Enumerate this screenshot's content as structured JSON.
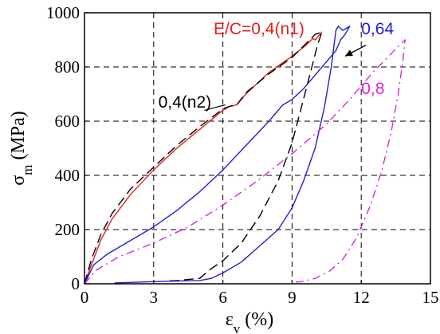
{
  "chart_data": {
    "type": "line",
    "xlabel": "ε_v (%)",
    "ylabel": "σ_m (MPa)",
    "xlim": [
      0,
      15
    ],
    "ylim": [
      0,
      1000
    ],
    "x_ticks": [
      0,
      3,
      6,
      9,
      12,
      15
    ],
    "y_ticks": [
      0,
      200,
      400,
      600,
      800,
      1000
    ],
    "grid": true,
    "grid_style": "dashed",
    "colors": {
      "n1": "#e8201b",
      "n2": "#000000",
      "c064": "#1f1fd8",
      "c08": "#e020e0"
    },
    "series": [
      {
        "name": "E/C=0,4(n1)",
        "color": "#e8201b",
        "style": "solid",
        "x": [
          0,
          0.3,
          0.7,
          1.2,
          2,
          3,
          4,
          5,
          6,
          6.3,
          6.6,
          7,
          8,
          9,
          9.6,
          9.9,
          10,
          10.3
        ],
        "y": [
          0,
          70,
          160,
          240,
          330,
          420,
          500,
          570,
          640,
          655,
          660,
          700,
          780,
          840,
          880,
          905,
          900,
          930
        ]
      },
      {
        "name": "0,4(n2)",
        "color": "#000000",
        "style": "dashed",
        "x": [
          0,
          0.3,
          0.7,
          1.2,
          2,
          3,
          4,
          5,
          6,
          6.3,
          6.6,
          7,
          8,
          9,
          10,
          10.3,
          10.1,
          9.8,
          9.4,
          9,
          8.4,
          7.6,
          6.8,
          6,
          5.4,
          5,
          4,
          3.5
        ],
        "y": [
          0,
          90,
          180,
          260,
          350,
          430,
          510,
          580,
          645,
          655,
          660,
          705,
          775,
          835,
          920,
          930,
          880,
          780,
          650,
          520,
          380,
          250,
          150,
          85,
          50,
          20,
          12,
          10
        ]
      },
      {
        "name": "0,64",
        "color": "#1f1fd8",
        "style": "solid",
        "x": [
          0,
          0.4,
          1,
          2,
          3,
          4,
          5,
          6,
          7,
          8,
          8.6,
          9,
          9.5,
          10,
          10.5,
          10.9,
          11.1,
          11.3,
          11.5,
          11.2,
          11,
          10.9,
          10.7,
          10.4,
          10.0,
          9.5,
          9.0,
          8.4,
          7.6,
          6.8,
          6,
          5.5,
          5,
          4,
          3,
          2,
          1.3
        ],
        "y": [
          0,
          70,
          110,
          160,
          210,
          270,
          340,
          420,
          510,
          600,
          660,
          680,
          720,
          770,
          820,
          860,
          900,
          920,
          950,
          935,
          950,
          935,
          800,
          650,
          500,
          380,
          280,
          200,
          140,
          80,
          40,
          20,
          12,
          10,
          8,
          5,
          3
        ]
      },
      {
        "name": "0,8",
        "color": "#e020e0",
        "style": "dashdot",
        "x": [
          0,
          0.5,
          1.5,
          3,
          4.5,
          6,
          7.5,
          9,
          10.5,
          11.5,
          12.5,
          13.2,
          13.7,
          13.9,
          13.8,
          13.6,
          13.3,
          12.9,
          12.4,
          11.8,
          11.2,
          10.6,
          10,
          9.4,
          9
        ],
        "y": [
          0,
          50,
          100,
          150,
          210,
          290,
          380,
          480,
          590,
          680,
          780,
          840,
          885,
          900,
          820,
          700,
          560,
          420,
          290,
          170,
          90,
          45,
          20,
          8,
          5
        ]
      }
    ],
    "annotations": [
      {
        "text": "E/C=0,4(n1)",
        "color": "#e8201b",
        "x": 5.6,
        "y": 920
      },
      {
        "text": "0,4(n2)",
        "color": "#000000",
        "x": 3.2,
        "y": 650
      },
      {
        "text": "0,64",
        "color": "#1f1fd8",
        "x": 12.0,
        "y": 920
      },
      {
        "text": "0,8",
        "color": "#e020e0",
        "x": 12.0,
        "y": 700
      }
    ]
  }
}
